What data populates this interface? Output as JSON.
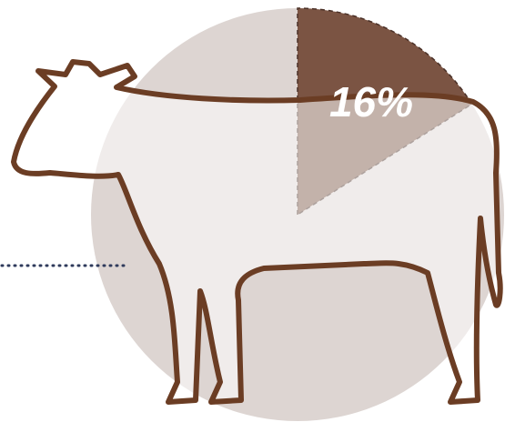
{
  "chart_data": {
    "type": "pie",
    "values": [
      16
    ],
    "value_labels": [
      "16%"
    ],
    "colors": [
      "#7b5443"
    ],
    "background_color": "#ddd5d2"
  }
}
